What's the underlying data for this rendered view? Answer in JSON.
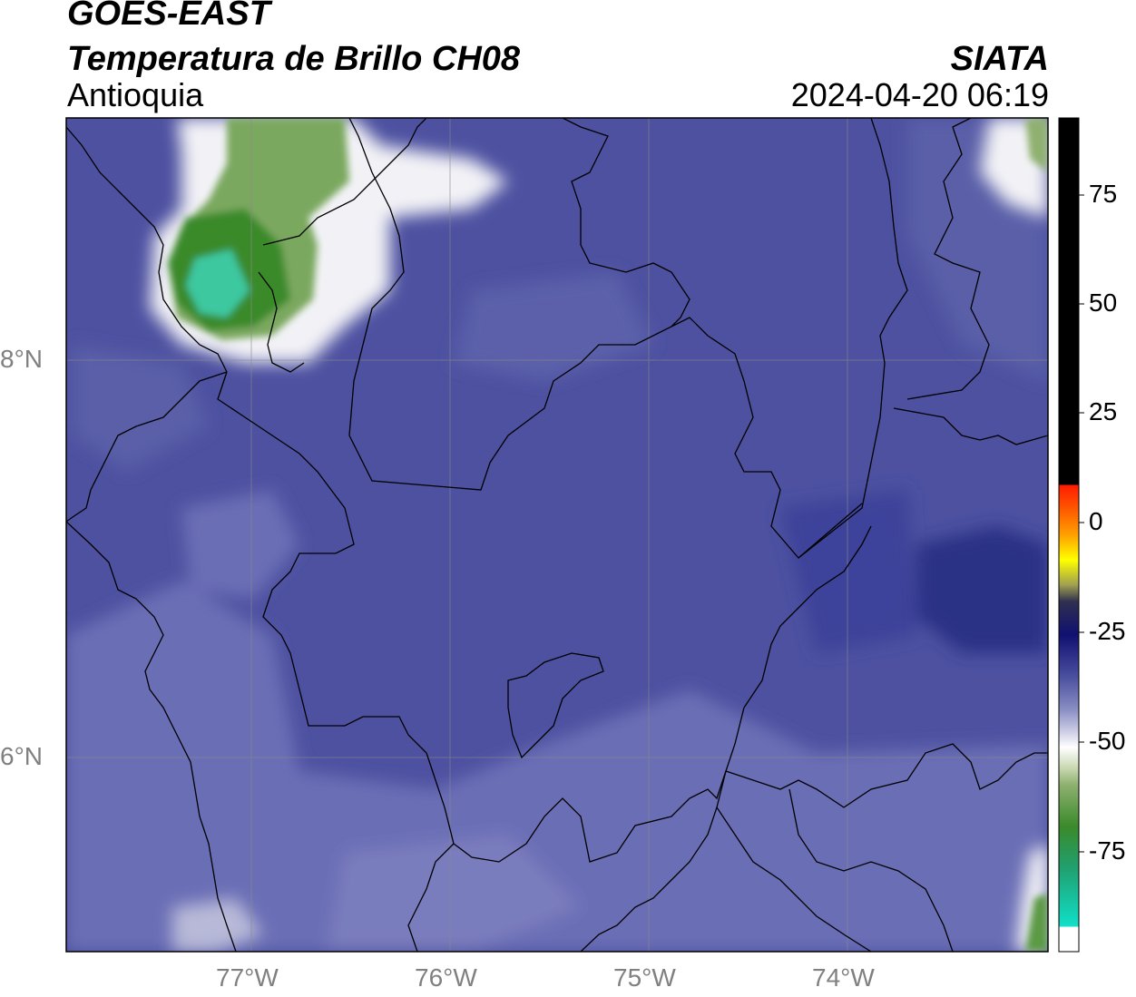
{
  "header": {
    "satellite": "GOES-EAST",
    "product": "Temperatura de Brillo CH08",
    "region": "Antioquia",
    "organization": "SIATA",
    "datetime": "2024-04-20 06:19"
  },
  "axes": {
    "lon_labels": [
      "77°W",
      "76°W",
      "75°W",
      "74°W"
    ],
    "lat_labels": [
      "8°N",
      "6°N"
    ],
    "grid": true
  },
  "colorbar": {
    "labels": [
      "75",
      "50",
      "25",
      "0",
      "-25",
      "-50",
      "-75"
    ],
    "colors": {
      "black": "#000000",
      "red": "#ff1a00",
      "orange": "#ffa000",
      "yellow": "#ffff00",
      "navy": "#101060",
      "blue_purple": "#4a4f9e",
      "light_purple": "#8a8fc4",
      "white": "#ffffff",
      "green_light": "#8fb070",
      "green": "#3a8a2a",
      "teal": "#10e0c8"
    }
  },
  "map_colors": {
    "background": "#4d51a0",
    "lighter": "#6b6eb5",
    "darker": "#343a8c",
    "cloud_white": "#f4f4f8",
    "cloud_green": "#5b9a45",
    "cloud_teal": "#3ec8a0",
    "boundary": "#000000"
  }
}
